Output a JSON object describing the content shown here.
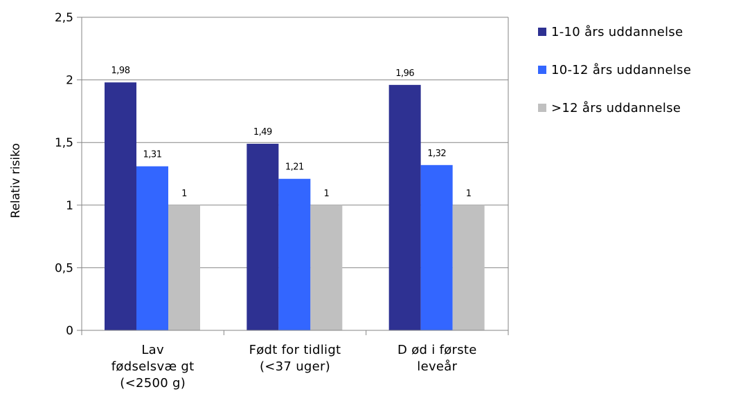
{
  "chart_data": {
    "type": "bar",
    "categories": [
      [
        "Lav",
        "fødselsvæ gt",
        "(<2500 g)"
      ],
      [
        "Født for tidligt",
        "(<37 uger)"
      ],
      [
        "D ød i første",
        "leveår"
      ]
    ],
    "series": [
      {
        "name": "1-10 års uddannelse",
        "color": "#2e3192",
        "values": [
          1.98,
          1.49,
          1.96
        ],
        "labels": [
          "1,98",
          "1,49",
          "1,96"
        ]
      },
      {
        "name": "10-12 års uddannelse",
        "color": "#3366ff",
        "values": [
          1.31,
          1.21,
          1.32
        ],
        "labels": [
          "1,31",
          "1,21",
          "1,32"
        ]
      },
      {
        "name": ">12 års uddannelse",
        "color": "#c0c0c0",
        "values": [
          1,
          1,
          1
        ],
        "labels": [
          "1",
          "1",
          "1"
        ]
      }
    ],
    "ylabel": "Relativ risiko",
    "xlabel": "",
    "title": "",
    "ylim": [
      0,
      2.5
    ],
    "yticks": [
      0,
      0.5,
      1,
      1.5,
      2,
      2.5
    ],
    "ytick_labels": [
      "0",
      "0,5",
      "1",
      "1,5",
      "2",
      "2,5"
    ],
    "grid": true,
    "legend_position": "right"
  }
}
